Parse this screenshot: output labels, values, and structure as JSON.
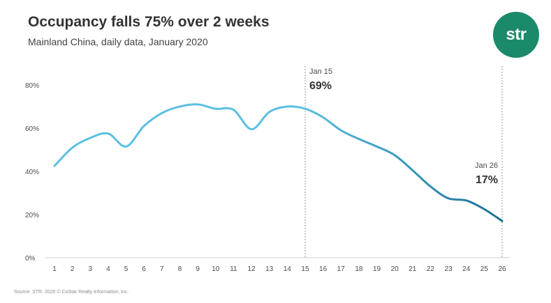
{
  "header": {
    "title": "Occupancy falls 75% over 2 weeks",
    "subtitle": "Mainland China, daily data, January 2020"
  },
  "logo": {
    "text": "str",
    "color": "#1b8a6b"
  },
  "footer": {
    "source": "Source: STR. 2020 © CoStar Realty Information, Inc."
  },
  "colors": {
    "line_start": "#5bc0e3",
    "line_end": "#1a6f94",
    "axis": "#cfcfcf",
    "guide": "#9a9a9a"
  },
  "chart_data": {
    "type": "line",
    "title": "Occupancy falls 75% over 2 weeks",
    "subtitle": "Mainland China, daily data, January 2020",
    "xlabel": "",
    "ylabel": "",
    "x": [
      1,
      2,
      3,
      4,
      5,
      6,
      7,
      8,
      9,
      10,
      11,
      12,
      13,
      14,
      15,
      16,
      17,
      18,
      19,
      20,
      21,
      22,
      23,
      24,
      25,
      26
    ],
    "ylim": [
      0,
      80
    ],
    "yticks": [
      "0%",
      "20%",
      "40%",
      "60%",
      "80%"
    ],
    "grid": false,
    "series": [
      {
        "values": [
          42.5,
          51,
          55.5,
          57.5,
          51.5,
          61,
          67,
          70,
          71,
          69,
          68.5,
          59.5,
          67.5,
          70,
          69,
          65,
          59,
          55,
          51.5,
          47.5,
          40.5,
          33,
          27.5,
          26.5,
          22.5,
          17
        ]
      }
    ],
    "annotations": [
      {
        "x": 15,
        "date": "Jan 15",
        "value": "69%"
      },
      {
        "x": 26,
        "date": "Jan 26",
        "value": "17%"
      }
    ]
  }
}
